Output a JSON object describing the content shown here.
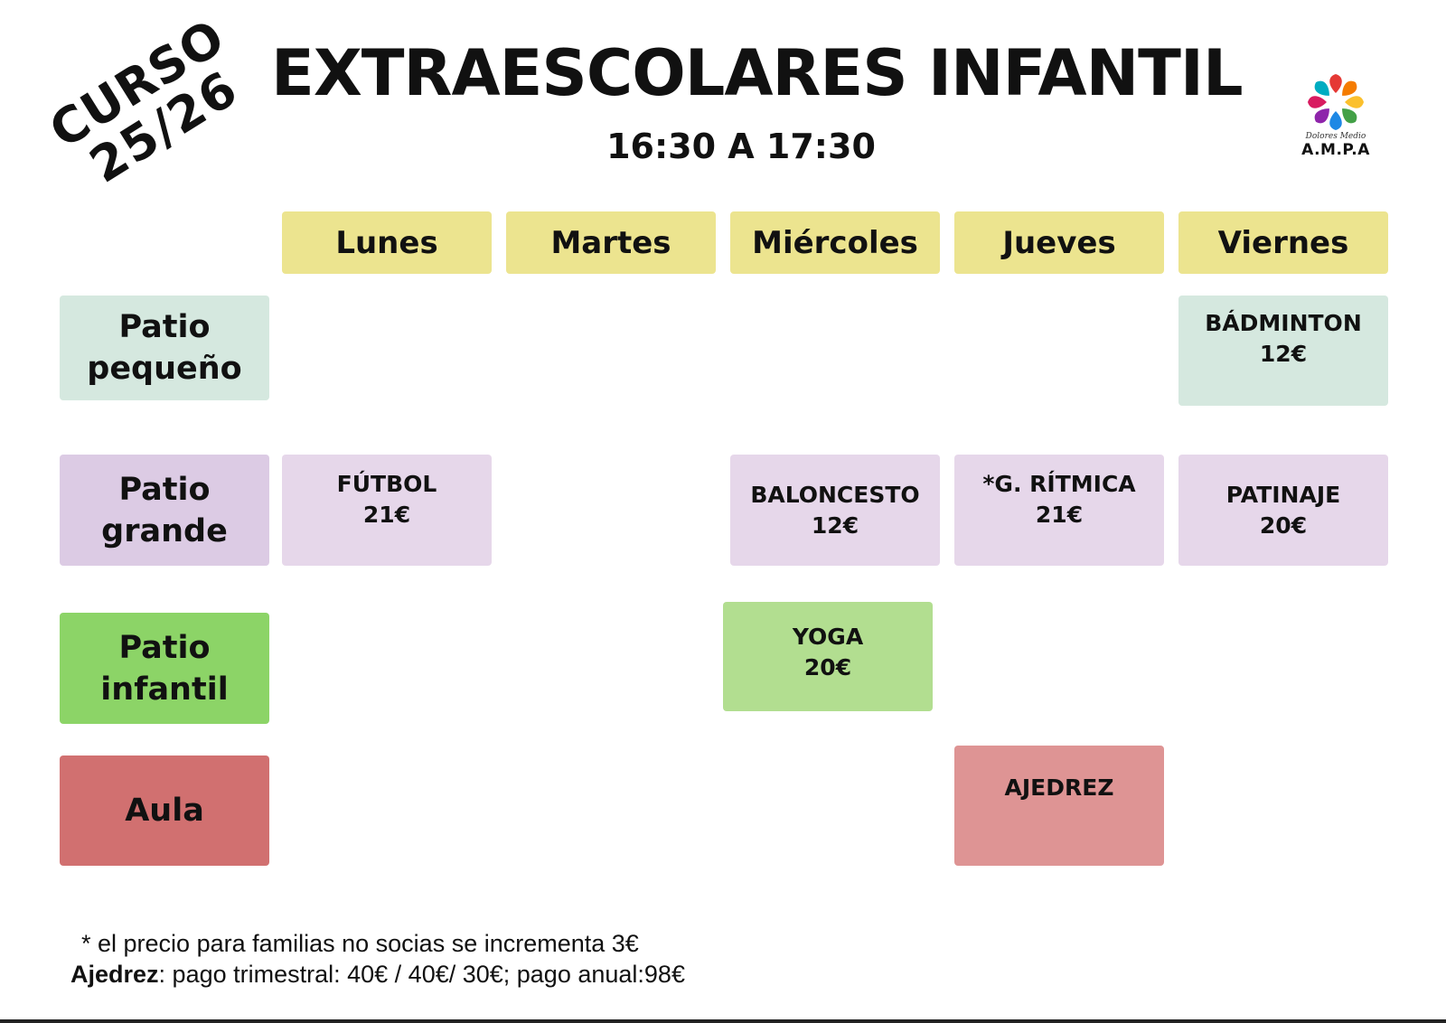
{
  "header": {
    "curso_line1": "CURSO",
    "curso_line2": "25/26",
    "title": "EXTRAESCOLARES INFANTIL",
    "time": "16:30 A 17:30",
    "logo_signature": "Dolores Medio",
    "logo_text": "A.M.P.A",
    "logo_colors": [
      "#e53935",
      "#f57c00",
      "#fbc02d",
      "#43a047",
      "#1e88e5",
      "#8e24aa",
      "#d81b60",
      "#00acc1"
    ]
  },
  "days": [
    "Lunes",
    "Martes",
    "Miércoles",
    "Jueves",
    "Viernes"
  ],
  "zones": {
    "patio_pequeno": "Patio\npequeño",
    "patio_grande": "Patio\ngrande",
    "patio_infantil": "Patio\ninfantil",
    "aula": "Aula"
  },
  "activities": {
    "badminton": {
      "name": "BÁDMINTON",
      "price": "12€"
    },
    "futbol": {
      "name": "FÚTBOL",
      "price": "21€"
    },
    "baloncesto": {
      "name": "BALONCESTO",
      "price": "12€"
    },
    "ritmica": {
      "name": "*G. RÍTMICA",
      "price": "21€"
    },
    "patinaje": {
      "name": "PATINAJE",
      "price": "20€"
    },
    "yoga": {
      "name": "YOGA",
      "price": "20€"
    },
    "ajedrez": {
      "name": "AJEDREZ"
    }
  },
  "notes": {
    "note1": "* el precio para familias no socias se incrementa 3€",
    "note2_label": "Ajedrez",
    "note2_text": ": pago trimestral: 40€ / 40€/ 30€; pago anual:98€"
  }
}
